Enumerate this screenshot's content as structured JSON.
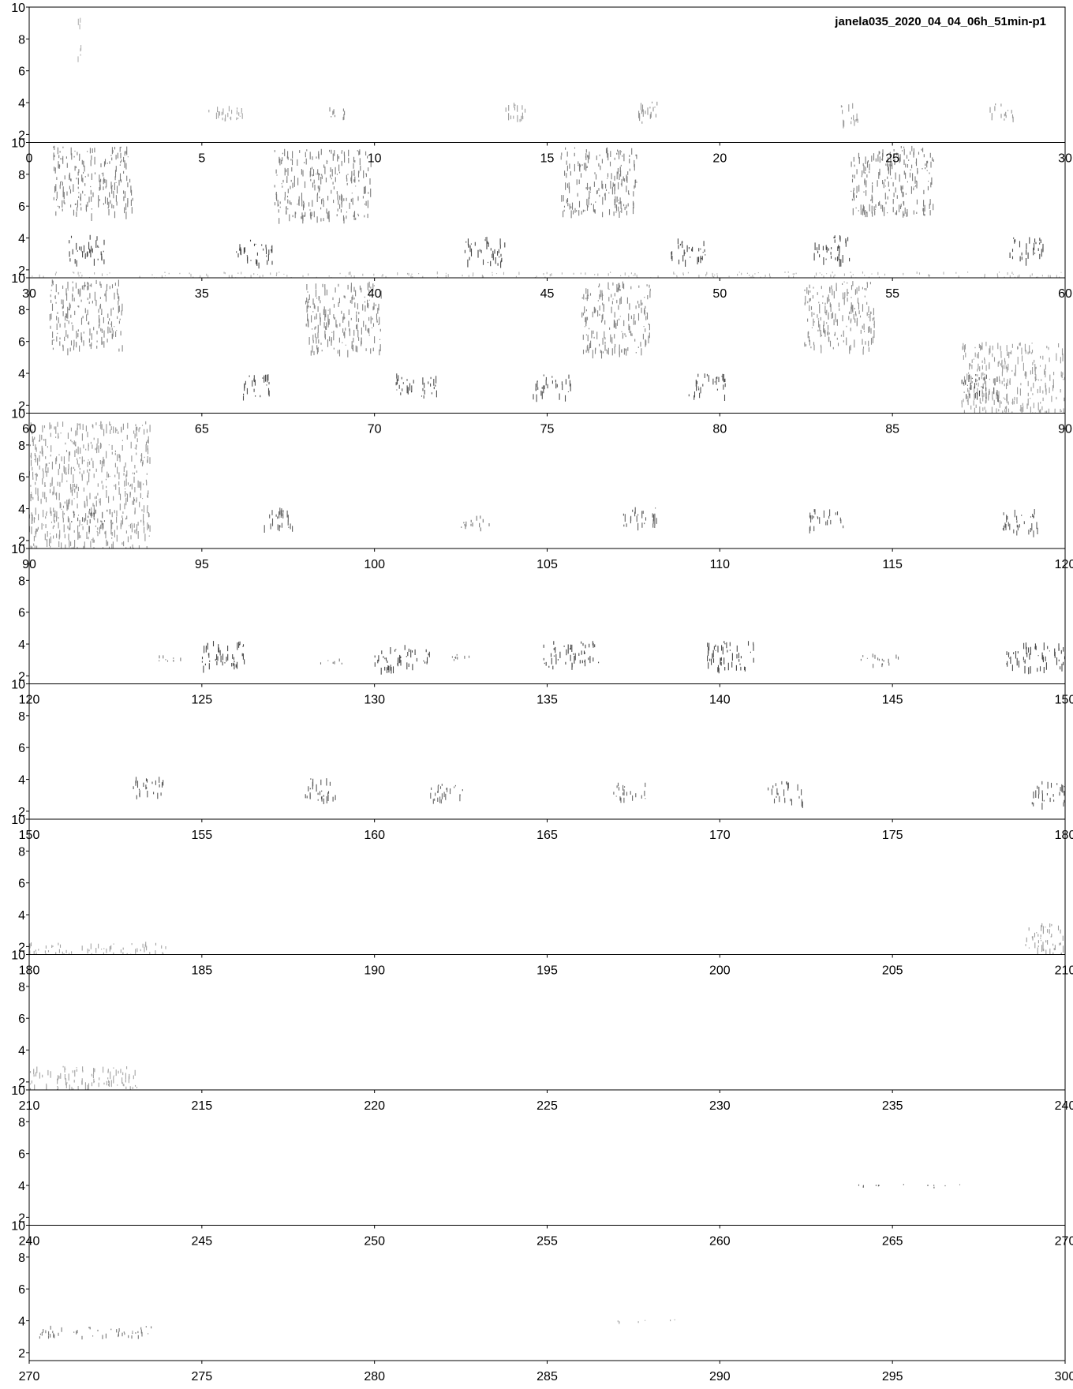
{
  "chart_data": {
    "type": "spectrogram",
    "title": "janela035_2020_04_04_06h_51min-p1",
    "xlabel": "",
    "ylabel": "",
    "ylim": [
      1.5,
      10
    ],
    "y_ticks": [
      "2",
      "4",
      "6",
      "8",
      "10"
    ],
    "colormap": [
      "#ffffff",
      "#000000"
    ],
    "grid": false,
    "panels": [
      {
        "xlim": [
          0,
          30
        ],
        "x_ticks": [
          "0",
          "5",
          "10",
          "15",
          "20",
          "25",
          "30"
        ],
        "events": [
          {
            "t0": 1.4,
            "t1": 1.5,
            "f0": 6.5,
            "f1": 10,
            "i": 0.2
          },
          {
            "t0": 5.2,
            "t1": 6.2,
            "f0": 2.7,
            "f1": 3.9,
            "i": 0.3
          },
          {
            "t0": 8.7,
            "t1": 9.2,
            "f0": 3.1,
            "f1": 4.0,
            "i": 0.5
          },
          {
            "t0": 13.8,
            "t1": 14.5,
            "f0": 2.8,
            "f1": 4.0,
            "i": 0.35
          },
          {
            "t0": 17.5,
            "t1": 18.2,
            "f0": 2.8,
            "f1": 4.1,
            "i": 0.4
          },
          {
            "t0": 23.4,
            "t1": 24.0,
            "f0": 2.7,
            "f1": 4.0,
            "i": 0.35
          },
          {
            "t0": 27.8,
            "t1": 28.5,
            "f0": 2.9,
            "f1": 4.0,
            "i": 0.4
          }
        ]
      },
      {
        "xlim": [
          30,
          60
        ],
        "x_ticks": [
          "30",
          "35",
          "40",
          "45",
          "50",
          "55",
          "60"
        ],
        "events": [
          {
            "t0": 30.7,
            "t1": 33.0,
            "f0": 5.5,
            "f1": 9.8,
            "i": 0.55
          },
          {
            "t0": 31.1,
            "t1": 32.2,
            "f0": 2.6,
            "f1": 4.2,
            "i": 0.9
          },
          {
            "t0": 36.0,
            "t1": 37.1,
            "f0": 2.4,
            "f1": 4.0,
            "i": 0.9
          },
          {
            "t0": 37.1,
            "t1": 39.9,
            "f0": 5.2,
            "f1": 9.6,
            "i": 0.55
          },
          {
            "t0": 42.6,
            "t1": 43.8,
            "f0": 2.4,
            "f1": 4.1,
            "i": 0.9
          },
          {
            "t0": 45.4,
            "t1": 47.6,
            "f0": 5.6,
            "f1": 9.7,
            "i": 0.55
          },
          {
            "t0": 48.5,
            "t1": 49.6,
            "f0": 2.6,
            "f1": 4.1,
            "i": 0.9
          },
          {
            "t0": 52.7,
            "t1": 53.8,
            "f0": 2.6,
            "f1": 4.2,
            "i": 0.9
          },
          {
            "t0": 53.8,
            "t1": 56.2,
            "f0": 5.5,
            "f1": 9.8,
            "i": 0.55
          },
          {
            "t0": 58.4,
            "t1": 59.4,
            "f0": 2.6,
            "f1": 4.1,
            "i": 0.9
          },
          {
            "t0": 30.0,
            "t1": 60.0,
            "f0": 1.5,
            "f1": 1.9,
            "i": 0.2
          }
        ]
      },
      {
        "xlim": [
          60,
          90
        ],
        "x_ticks": [
          "60",
          "65",
          "70",
          "75",
          "80",
          "85",
          "90"
        ],
        "events": [
          {
            "t0": 60.6,
            "t1": 62.7,
            "f0": 5.5,
            "f1": 9.9,
            "i": 0.5
          },
          {
            "t0": 66.2,
            "t1": 67.0,
            "f0": 2.5,
            "f1": 4.0,
            "i": 0.85
          },
          {
            "t0": 68.0,
            "t1": 70.2,
            "f0": 5.3,
            "f1": 9.8,
            "i": 0.5
          },
          {
            "t0": 70.6,
            "t1": 71.8,
            "f0": 2.6,
            "f1": 4.0,
            "i": 0.85
          },
          {
            "t0": 74.6,
            "t1": 75.7,
            "f0": 2.6,
            "f1": 4.0,
            "i": 0.85
          },
          {
            "t0": 76.0,
            "t1": 78.0,
            "f0": 5.3,
            "f1": 9.8,
            "i": 0.5
          },
          {
            "t0": 79.1,
            "t1": 80.2,
            "f0": 2.6,
            "f1": 4.0,
            "i": 0.85
          },
          {
            "t0": 82.4,
            "t1": 84.5,
            "f0": 5.5,
            "f1": 9.8,
            "i": 0.45
          },
          {
            "t0": 87.0,
            "t1": 88.1,
            "f0": 2.6,
            "f1": 4.0,
            "i": 0.85
          },
          {
            "t0": 87.0,
            "t1": 90.0,
            "f0": 1.5,
            "f1": 6.0,
            "i": 0.35
          }
        ]
      },
      {
        "xlim": [
          90,
          120
        ],
        "x_ticks": [
          "90",
          "95",
          "100",
          "105",
          "110",
          "115",
          "120"
        ],
        "events": [
          {
            "t0": 90.0,
            "t1": 93.5,
            "f0": 1.5,
            "f1": 9.5,
            "i": 0.4
          },
          {
            "t0": 91.2,
            "t1": 92.4,
            "f0": 2.9,
            "f1": 4.0,
            "i": 0.7
          },
          {
            "t0": 96.8,
            "t1": 97.7,
            "f0": 2.8,
            "f1": 4.1,
            "i": 0.75
          },
          {
            "t0": 102.5,
            "t1": 103.4,
            "f0": 2.8,
            "f1": 3.6,
            "i": 0.6
          },
          {
            "t0": 107.2,
            "t1": 108.2,
            "f0": 2.9,
            "f1": 4.2,
            "i": 0.75
          },
          {
            "t0": 112.6,
            "t1": 113.6,
            "f0": 2.8,
            "f1": 4.0,
            "i": 0.75
          },
          {
            "t0": 118.1,
            "t1": 119.2,
            "f0": 2.6,
            "f1": 4.0,
            "i": 0.75
          }
        ]
      },
      {
        "xlim": [
          120,
          150
        ],
        "x_ticks": [
          "120",
          "125",
          "130",
          "135",
          "140",
          "145",
          "150"
        ],
        "events": [
          {
            "t0": 123.7,
            "t1": 124.5,
            "f0": 2.8,
            "f1": 3.3,
            "i": 0.6
          },
          {
            "t0": 124.9,
            "t1": 126.3,
            "f0": 2.5,
            "f1": 4.2,
            "i": 0.9
          },
          {
            "t0": 128.4,
            "t1": 129.2,
            "f0": 2.8,
            "f1": 3.2,
            "i": 0.6
          },
          {
            "t0": 130.0,
            "t1": 131.6,
            "f0": 2.5,
            "f1": 4.0,
            "i": 0.9
          },
          {
            "t0": 132.0,
            "t1": 133.0,
            "f0": 3.0,
            "f1": 3.4,
            "i": 0.6
          },
          {
            "t0": 134.9,
            "t1": 136.5,
            "f0": 2.6,
            "f1": 4.2,
            "i": 0.9
          },
          {
            "t0": 139.6,
            "t1": 141.1,
            "f0": 2.5,
            "f1": 4.2,
            "i": 0.9
          },
          {
            "t0": 144.0,
            "t1": 145.2,
            "f0": 2.7,
            "f1": 3.4,
            "i": 0.6
          },
          {
            "t0": 148.3,
            "t1": 150.0,
            "f0": 2.5,
            "f1": 4.1,
            "i": 0.9
          }
        ]
      },
      {
        "xlim": [
          150,
          180
        ],
        "x_ticks": [
          "150",
          "155",
          "160",
          "165",
          "170",
          "175",
          "180"
        ],
        "events": [
          {
            "t0": 152.9,
            "t1": 153.9,
            "f0": 3.0,
            "f1": 4.2,
            "i": 0.8
          },
          {
            "t0": 157.9,
            "t1": 158.9,
            "f0": 2.7,
            "f1": 4.1,
            "i": 0.8
          },
          {
            "t0": 161.6,
            "t1": 162.7,
            "f0": 2.7,
            "f1": 3.9,
            "i": 0.7
          },
          {
            "t0": 166.9,
            "t1": 167.9,
            "f0": 2.8,
            "f1": 3.8,
            "i": 0.7
          },
          {
            "t0": 171.4,
            "t1": 172.4,
            "f0": 2.6,
            "f1": 3.9,
            "i": 0.75
          },
          {
            "t0": 179.0,
            "t1": 180.0,
            "f0": 2.5,
            "f1": 3.9,
            "i": 0.8
          }
        ]
      },
      {
        "xlim": [
          180,
          210
        ],
        "x_ticks": [
          "180",
          "185",
          "190",
          "195",
          "200",
          "205",
          "210"
        ],
        "events": [
          {
            "t0": 180.0,
            "t1": 184.0,
            "f0": 1.5,
            "f1": 2.3,
            "i": 0.3
          },
          {
            "t0": 208.8,
            "t1": 210.0,
            "f0": 1.5,
            "f1": 3.5,
            "i": 0.35
          }
        ]
      },
      {
        "xlim": [
          210,
          240
        ],
        "x_ticks": [
          "210",
          "215",
          "220",
          "225",
          "230",
          "235",
          "240"
        ],
        "events": [
          {
            "t0": 210.0,
            "t1": 213.2,
            "f0": 1.5,
            "f1": 3.0,
            "i": 0.3
          }
        ]
      },
      {
        "xlim": [
          240,
          270
        ],
        "x_ticks": [
          "240",
          "245",
          "250",
          "255",
          "260",
          "265",
          "270"
        ],
        "events": [
          {
            "t0": 264.0,
            "t1": 267.0,
            "f0": 3.9,
            "f1": 4.1,
            "i": 0.75
          }
        ]
      },
      {
        "xlim": [
          270,
          300
        ],
        "x_ticks": [
          "270",
          "275",
          "280",
          "285",
          "290",
          "295",
          "300"
        ],
        "events": [
          {
            "t0": 270.2,
            "t1": 273.6,
            "f0": 3.0,
            "f1": 3.7,
            "i": 0.6
          },
          {
            "t0": 287.0,
            "t1": 288.8,
            "f0": 3.9,
            "f1": 4.1,
            "i": 0.3
          }
        ]
      }
    ]
  }
}
